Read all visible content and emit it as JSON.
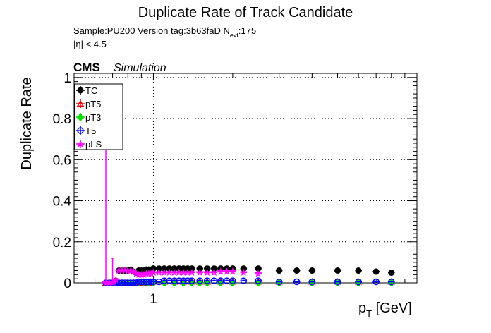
{
  "title": "Duplicate Rate of Track Candidate",
  "info": {
    "sample_line_prefix": "Sample:PU200   Version tag:3b63faD  N",
    "nevt_subscript": "evt",
    "nevt_value": ":175",
    "eta_line": "|η| < 4.5"
  },
  "cms_label": "CMS",
  "simulation_label": "Simulation",
  "chart_data": {
    "type": "scatter",
    "title": "Duplicate Rate of Track Candidate",
    "xlabel_main": "p",
    "xlabel_sub": "T",
    "xlabel_unit": " [GeV]",
    "ylabel": "Duplicate Rate",
    "x_scale": "log",
    "xlim": [
      0.5,
      10
    ],
    "ylim": [
      0,
      1.02
    ],
    "x_tick_labels": [
      {
        "x": 1,
        "label": "1"
      }
    ],
    "y_tick_labels": [
      {
        "y": 0,
        "label": "0"
      },
      {
        "y": 0.2,
        "label": "0.2"
      },
      {
        "y": 0.4,
        "label": "0.4"
      },
      {
        "y": 0.6,
        "label": "0.6"
      },
      {
        "y": 0.8,
        "label": "0.8"
      },
      {
        "y": 1,
        "label": "1"
      }
    ],
    "grid": true,
    "legend_position": "top-left",
    "series": [
      {
        "name": "TC",
        "color": "#000000",
        "marker": "filled-circle",
        "x": [
          0.66,
          0.68,
          0.7,
          0.72,
          0.74,
          0.76,
          0.78,
          0.8,
          0.82,
          0.84,
          0.86,
          0.88,
          0.9,
          0.92,
          0.94,
          0.96,
          0.98,
          1.0,
          1.05,
          1.1,
          1.15,
          1.2,
          1.25,
          1.3,
          1.35,
          1.4,
          1.5,
          1.6,
          1.7,
          1.8,
          1.9,
          2.0,
          2.2,
          2.5,
          3.0,
          3.5,
          4.0,
          5.0,
          6.0,
          7.0,
          8.0
        ],
        "y": [
          0.0,
          0.0,
          0.0,
          0.01,
          0.06,
          0.06,
          0.06,
          0.06,
          0.065,
          0.055,
          0.05,
          0.06,
          0.06,
          0.06,
          0.065,
          0.065,
          0.065,
          0.07,
          0.07,
          0.07,
          0.07,
          0.07,
          0.07,
          0.07,
          0.07,
          0.07,
          0.07,
          0.07,
          0.07,
          0.07,
          0.07,
          0.07,
          0.07,
          0.07,
          0.06,
          0.06,
          0.06,
          0.06,
          0.06,
          0.055,
          0.05
        ],
        "yerr": [
          0.0,
          0.0,
          0.0,
          0.0,
          0.005,
          0.005,
          0.005,
          0.005,
          0.005,
          0.005,
          0.005,
          0.005,
          0.005,
          0.005,
          0.005,
          0.005,
          0.005,
          0.005,
          0.005,
          0.005,
          0.005,
          0.005,
          0.005,
          0.005,
          0.005,
          0.005,
          0.005,
          0.005,
          0.005,
          0.005,
          0.005,
          0.005,
          0.005,
          0.005,
          0.005,
          0.005,
          0.005,
          0.005,
          0.005,
          0.005,
          0.005
        ]
      },
      {
        "name": "pT5",
        "color": "#ff0000",
        "marker": "open-triangle",
        "x": [
          0.66,
          0.68,
          0.7,
          0.72,
          0.76,
          0.8,
          0.84,
          0.88,
          0.92,
          0.96,
          1.0,
          1.1,
          1.2,
          1.3,
          1.4,
          1.5,
          1.6,
          1.8,
          2.0,
          2.5,
          3.0,
          4.0,
          5.0,
          6.0,
          8.0
        ],
        "y": [
          0.0,
          0.0,
          0.0,
          0.0,
          0.0,
          0.0,
          0.0,
          0.0,
          0.0,
          0.0,
          0.005,
          0.005,
          0.005,
          0.005,
          0.005,
          0.005,
          0.005,
          0.005,
          0.005,
          0.005,
          0.005,
          0.005,
          0.005,
          0.005,
          0.005
        ],
        "yerr": [
          0.0,
          0.0,
          0.0,
          0.0,
          0.0,
          0.0,
          0.0,
          0.0,
          0.0,
          0.0,
          0.003,
          0.003,
          0.003,
          0.003,
          0.003,
          0.003,
          0.003,
          0.003,
          0.003,
          0.003,
          0.003,
          0.003,
          0.003,
          0.003,
          0.003
        ]
      },
      {
        "name": "pT3",
        "color": "#00dd00",
        "marker": "filled-cross",
        "x": [
          0.66,
          0.68,
          0.7,
          0.72,
          0.76,
          0.8,
          0.84,
          0.88,
          0.92,
          0.96,
          1.0,
          1.1,
          1.2,
          1.3,
          1.4,
          1.5,
          1.6,
          1.8,
          2.0,
          2.5,
          3.0,
          4.0,
          5.0,
          6.0,
          8.0
        ],
        "y": [
          0.0,
          0.0,
          0.0,
          0.0,
          0.0,
          0.0,
          0.0,
          0.0,
          0.0,
          0.0,
          0.0,
          0.0,
          0.0,
          0.0,
          0.0,
          0.0,
          0.0,
          0.0,
          0.0,
          0.0,
          0.0,
          0.0,
          0.0,
          0.0,
          0.0
        ],
        "yerr": [
          0.0,
          0.0,
          0.0,
          0.0,
          0.0,
          0.0,
          0.0,
          0.0,
          0.0,
          0.0,
          0.0,
          0.0,
          0.0,
          0.0,
          0.0,
          0.0,
          0.0,
          0.0,
          0.0,
          0.0,
          0.0,
          0.0,
          0.0,
          0.0,
          0.0
        ]
      },
      {
        "name": "T5",
        "color": "#0000ff",
        "marker": "open-circle",
        "x": [
          0.66,
          0.68,
          0.7,
          0.72,
          0.74,
          0.76,
          0.78,
          0.8,
          0.82,
          0.84,
          0.86,
          0.88,
          0.9,
          0.92,
          0.94,
          0.96,
          0.98,
          1.0,
          1.05,
          1.1,
          1.15,
          1.2,
          1.25,
          1.3,
          1.35,
          1.4,
          1.5,
          1.6,
          1.7,
          1.8,
          1.9,
          2.0,
          2.2,
          2.5,
          3.0,
          3.5,
          4.0,
          5.0,
          6.0,
          7.0,
          8.0
        ],
        "y": [
          0.0,
          0.0,
          0.0,
          0.0,
          0.0,
          0.0,
          0.0,
          0.0,
          0.0,
          0.0,
          0.0,
          0.005,
          0.005,
          0.005,
          0.005,
          0.005,
          0.005,
          0.005,
          0.005,
          0.01,
          0.01,
          0.01,
          0.01,
          0.01,
          0.01,
          0.01,
          0.01,
          0.01,
          0.01,
          0.01,
          0.01,
          0.01,
          0.01,
          0.01,
          0.005,
          0.005,
          0.005,
          0.005,
          0.005,
          0.005,
          0.005
        ],
        "yerr": [
          0.0,
          0.0,
          0.0,
          0.0,
          0.0,
          0.0,
          0.0,
          0.0,
          0.0,
          0.0,
          0.0,
          0.003,
          0.003,
          0.003,
          0.003,
          0.003,
          0.003,
          0.003,
          0.003,
          0.003,
          0.003,
          0.003,
          0.003,
          0.003,
          0.003,
          0.003,
          0.003,
          0.003,
          0.003,
          0.003,
          0.003,
          0.003,
          0.003,
          0.003,
          0.003,
          0.003,
          0.003,
          0.003,
          0.003,
          0.003,
          0.003
        ]
      },
      {
        "name": "pLS",
        "color": "#ff00ff",
        "marker": "open-star",
        "x": [
          0.66,
          0.68,
          0.7,
          0.72,
          0.74,
          0.76,
          0.78,
          0.8,
          0.82,
          0.84,
          0.86,
          0.88,
          0.9,
          0.92,
          0.94,
          0.96,
          0.98,
          1.0,
          1.05,
          1.1,
          1.15,
          1.2,
          1.25,
          1.3,
          1.35,
          1.4,
          1.5,
          1.6,
          1.7,
          1.8,
          1.9,
          2.0,
          2.2,
          2.5
        ],
        "y": [
          0.0,
          0.0,
          0.0,
          0.015,
          0.06,
          0.06,
          0.06,
          0.06,
          0.06,
          0.055,
          0.045,
          0.04,
          0.04,
          0.04,
          0.045,
          0.045,
          0.045,
          0.05,
          0.05,
          0.05,
          0.05,
          0.05,
          0.05,
          0.05,
          0.05,
          0.05,
          0.05,
          0.05,
          0.05,
          0.055,
          0.055,
          0.055,
          0.05,
          0.045
        ],
        "yerr": [
          0.84,
          0.0,
          0.12,
          0.005,
          0.005,
          0.005,
          0.005,
          0.005,
          0.005,
          0.005,
          0.005,
          0.005,
          0.005,
          0.005,
          0.005,
          0.005,
          0.005,
          0.005,
          0.005,
          0.005,
          0.005,
          0.005,
          0.005,
          0.005,
          0.005,
          0.005,
          0.005,
          0.005,
          0.005,
          0.005,
          0.005,
          0.005,
          0.005,
          0.005
        ]
      }
    ]
  }
}
